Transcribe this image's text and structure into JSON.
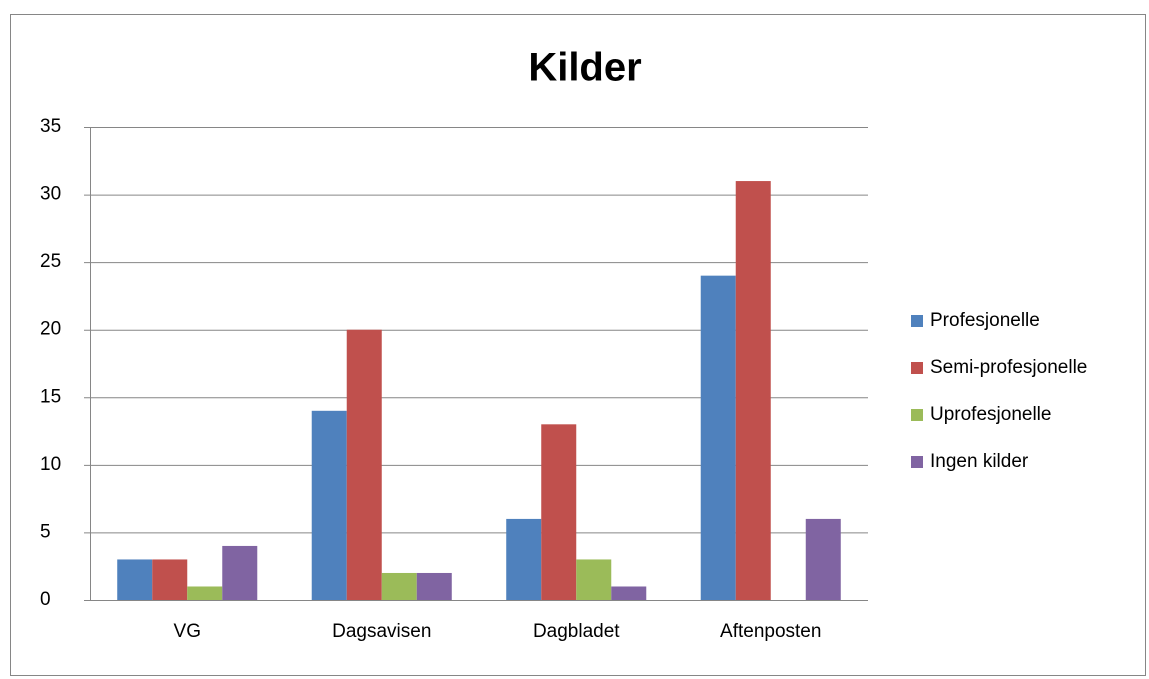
{
  "chart_data": {
    "type": "bar",
    "title": "Kilder",
    "categories": [
      "VG",
      "Dagsavisen",
      "Dagbladet",
      "Aftenposten"
    ],
    "series": [
      {
        "name": "Profesjonelle",
        "color": "#4f81bd",
        "values": [
          3,
          14,
          6,
          24
        ]
      },
      {
        "name": "Semi-profesjonelle",
        "color": "#c0504d",
        "values": [
          3,
          20,
          13,
          31
        ]
      },
      {
        "name": "Uprofesjonelle",
        "color": "#9bbb59",
        "values": [
          1,
          2,
          3,
          0
        ]
      },
      {
        "name": "Ingen kilder",
        "color": "#8064a2",
        "values": [
          4,
          2,
          1,
          6
        ]
      }
    ],
    "ylim": [
      0,
      35
    ],
    "yticks": [
      0,
      5,
      10,
      15,
      20,
      25,
      30,
      35
    ],
    "grid": true,
    "legend": "right"
  }
}
